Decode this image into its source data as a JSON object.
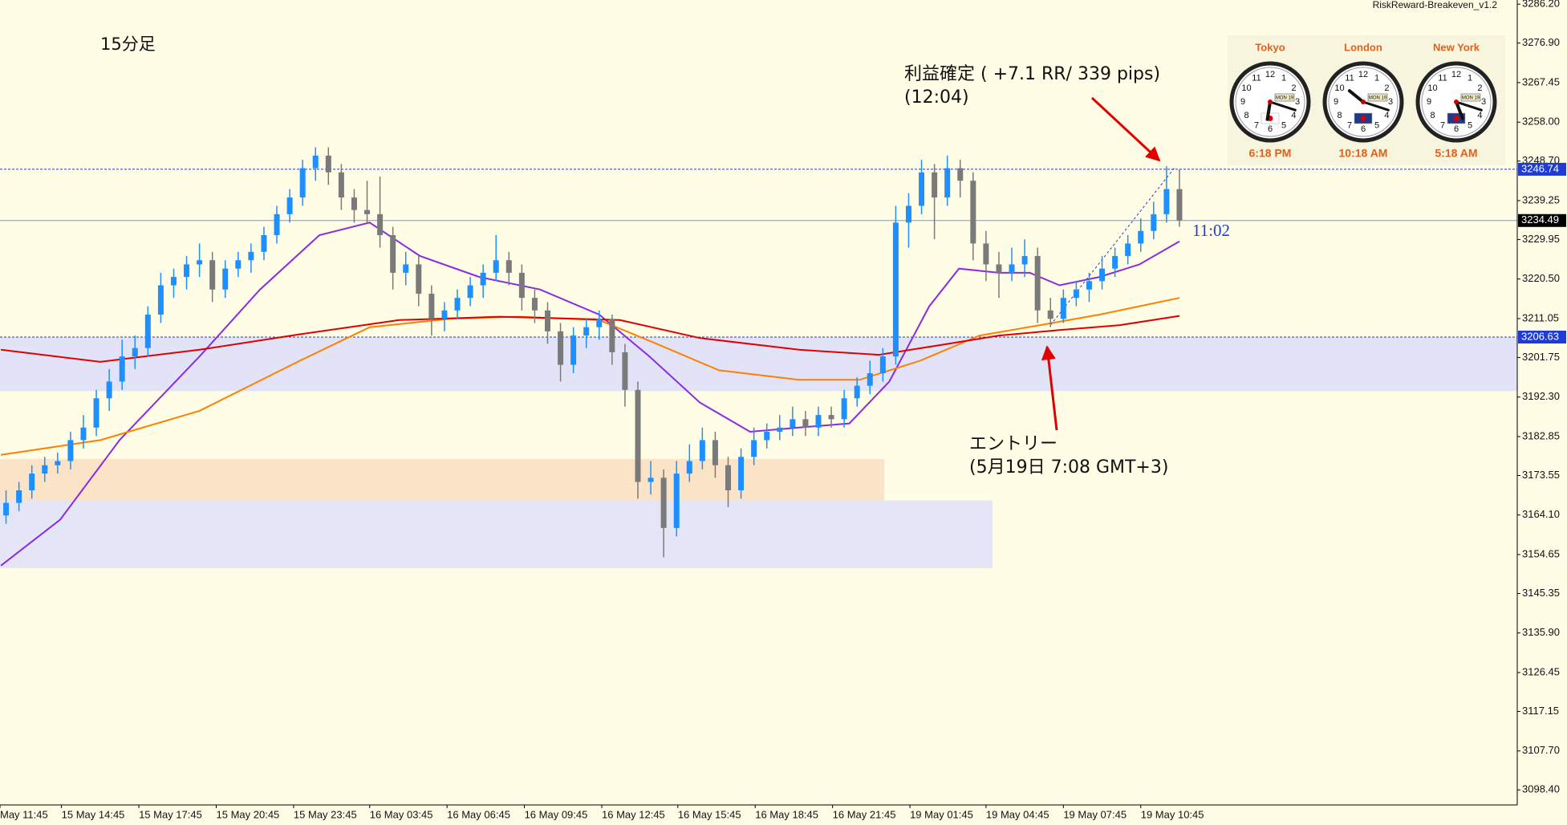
{
  "chart_data": {
    "type": "candlestick",
    "title": "15分足",
    "indicator_label": "RiskReward-Breakeven_v1.2",
    "annotations": {
      "take_profit": "利益確定 ( +7.1 RR/ 339 pips)",
      "take_profit_time": "(12:04)",
      "entry": "エントリー",
      "entry_time": "(5月19日 7:08 GMT+3)",
      "countdown": "11:02"
    },
    "xlim": [
      -0.47,
      117.2
    ],
    "ylim": [
      3094.8,
      3287.2
    ],
    "grid": false,
    "bull_color": "#1e8fff",
    "bear_color": "#7a7a7a",
    "background": "#fffde6",
    "ohlc": [
      [
        3164,
        3170,
        3162,
        3167
      ],
      [
        3167,
        3172,
        3165,
        3170
      ],
      [
        3170,
        3176,
        3168,
        3174
      ],
      [
        3174,
        3178,
        3172,
        3176
      ],
      [
        3176,
        3179,
        3174,
        3177
      ],
      [
        3177,
        3184,
        3175,
        3182
      ],
      [
        3182,
        3188,
        3180,
        3185
      ],
      [
        3185,
        3194,
        3183,
        3192
      ],
      [
        3192,
        3199,
        3189,
        3196
      ],
      [
        3196,
        3206,
        3194,
        3202
      ],
      [
        3202,
        3207,
        3199,
        3204
      ],
      [
        3204,
        3214,
        3202,
        3212
      ],
      [
        3212,
        3222,
        3210,
        3219
      ],
      [
        3219,
        3223,
        3216,
        3221
      ],
      [
        3221,
        3226,
        3218,
        3224
      ],
      [
        3224,
        3229,
        3221,
        3225
      ],
      [
        3225,
        3227,
        3215,
        3218
      ],
      [
        3218,
        3225,
        3216,
        3223
      ],
      [
        3223,
        3227,
        3221,
        3225
      ],
      [
        3225,
        3229,
        3222,
        3227
      ],
      [
        3227,
        3233,
        3225,
        3231
      ],
      [
        3231,
        3238,
        3229,
        3236
      ],
      [
        3236,
        3242,
        3234,
        3240
      ],
      [
        3240,
        3249,
        3238,
        3247
      ],
      [
        3247,
        3252,
        3244,
        3250
      ],
      [
        3250,
        3252,
        3243,
        3246
      ],
      [
        3246,
        3248,
        3237,
        3240
      ],
      [
        3240,
        3242,
        3234,
        3237
      ],
      [
        3237,
        3244,
        3234,
        3236
      ],
      [
        3236,
        3245,
        3228,
        3231
      ],
      [
        3231,
        3233,
        3218,
        3222
      ],
      [
        3222,
        3227,
        3219,
        3224
      ],
      [
        3224,
        3226,
        3214,
        3217
      ],
      [
        3217,
        3219,
        3207,
        3211
      ],
      [
        3211,
        3215,
        3208,
        3213
      ],
      [
        3213,
        3218,
        3211,
        3216
      ],
      [
        3216,
        3221,
        3214,
        3219
      ],
      [
        3219,
        3224,
        3216,
        3222
      ],
      [
        3222,
        3231,
        3220,
        3225
      ],
      [
        3225,
        3227,
        3219,
        3222
      ],
      [
        3222,
        3224,
        3213,
        3216
      ],
      [
        3216,
        3218,
        3210,
        3213
      ],
      [
        3213,
        3215,
        3205,
        3208
      ],
      [
        3208,
        3210,
        3196,
        3200
      ],
      [
        3200,
        3209,
        3198,
        3207
      ],
      [
        3207,
        3211,
        3204,
        3209
      ],
      [
        3209,
        3213,
        3206,
        3211
      ],
      [
        3211,
        3212,
        3200,
        3203
      ],
      [
        3203,
        3205,
        3190,
        3194
      ],
      [
        3194,
        3196,
        3168,
        3172
      ],
      [
        3172,
        3177,
        3169,
        3173
      ],
      [
        3173,
        3175,
        3154,
        3161
      ],
      [
        3161,
        3177,
        3159,
        3174
      ],
      [
        3174,
        3181,
        3172,
        3177
      ],
      [
        3177,
        3185,
        3175,
        3182
      ],
      [
        3182,
        3184,
        3173,
        3176
      ],
      [
        3176,
        3178,
        3166,
        3170
      ],
      [
        3170,
        3180,
        3168,
        3178
      ],
      [
        3178,
        3185,
        3176,
        3182
      ],
      [
        3182,
        3186,
        3180,
        3184
      ],
      [
        3184,
        3188,
        3182,
        3185
      ],
      [
        3185,
        3190,
        3183,
        3187
      ],
      [
        3187,
        3189,
        3183,
        3185
      ],
      [
        3185,
        3190,
        3183,
        3188
      ],
      [
        3188,
        3190,
        3185,
        3187
      ],
      [
        3187,
        3194,
        3185,
        3192
      ],
      [
        3192,
        3197,
        3190,
        3195
      ],
      [
        3195,
        3201,
        3193,
        3198
      ],
      [
        3198,
        3204,
        3196,
        3202
      ],
      [
        3202,
        3238,
        3200,
        3234
      ],
      [
        3234,
        3241,
        3228,
        3238
      ],
      [
        3238,
        3249,
        3236,
        3246
      ],
      [
        3246,
        3248,
        3230,
        3240
      ],
      [
        3240,
        3250,
        3238,
        3247
      ],
      [
        3247,
        3249,
        3240,
        3244
      ],
      [
        3244,
        3246,
        3225,
        3229
      ],
      [
        3229,
        3232,
        3220,
        3224
      ],
      [
        3224,
        3227,
        3216,
        3222
      ],
      [
        3222,
        3228,
        3220,
        3224
      ],
      [
        3224,
        3230,
        3221,
        3226
      ],
      [
        3226,
        3228,
        3210,
        3213
      ],
      [
        3213,
        3216,
        3209,
        3211
      ],
      [
        3211,
        3218,
        3210,
        3216
      ],
      [
        3216,
        3220,
        3214,
        3218
      ],
      [
        3218,
        3222,
        3215,
        3220
      ],
      [
        3220,
        3226,
        3218,
        3223
      ],
      [
        3223,
        3228,
        3221,
        3226
      ],
      [
        3226,
        3231,
        3224,
        3229
      ],
      [
        3229,
        3235,
        3227,
        3232
      ],
      [
        3232,
        3239,
        3230,
        3236
      ],
      [
        3236,
        3247.5,
        3234,
        3242
      ],
      [
        3242,
        3246.74,
        3233,
        3234.49
      ]
    ],
    "series": [
      {
        "color": "#8a2be2",
        "x": [
          -0.4,
          4.2,
          8.8,
          15,
          19.7,
          24.3,
          28.2,
          32.1,
          36.7,
          41.4,
          46,
          49.9,
          53.8,
          57.7,
          61.5,
          65.4,
          68.5,
          71.6,
          73.9,
          77,
          79.4,
          81.7,
          84.8,
          87.9,
          91
        ],
        "values": [
          3152,
          3163,
          3182,
          3202,
          3218,
          3231,
          3234,
          3226,
          3221,
          3218,
          3212,
          3202,
          3191,
          3184,
          3185,
          3186,
          3196,
          3214,
          3223,
          3222,
          3222,
          3219,
          3221,
          3224,
          3229.5
        ]
      },
      {
        "color": "#ff8000",
        "x": [
          -0.4,
          7.3,
          15,
          22.8,
          28.2,
          34.4,
          39.8,
          46,
          50.7,
          55.3,
          61.5,
          66.2,
          70.9,
          75.5,
          80.2,
          84.8,
          91
        ],
        "values": [
          3178.5,
          3182,
          3189,
          3201,
          3209,
          3211,
          3211.5,
          3210.7,
          3204.7,
          3198.7,
          3196.4,
          3196.4,
          3201,
          3207,
          3209.5,
          3212,
          3216
        ]
      },
      {
        "color": "#e00000",
        "x": [
          -0.4,
          7.3,
          15,
          22.8,
          30.5,
          38.3,
          47.6,
          53.8,
          61.5,
          67.7,
          72.4,
          77,
          81.7,
          86.4,
          91
        ],
        "values": [
          3203.6,
          3200.7,
          3203.6,
          3207.3,
          3210.7,
          3211.5,
          3210.7,
          3206.4,
          3203.6,
          3202.4,
          3204.7,
          3207,
          3208.3,
          3209.5,
          3211.7
        ]
      }
    ],
    "zones": [
      {
        "top": 3206.63,
        "bottom": 3193.7,
        "x_end": 117.2,
        "color": "#e3e3f7"
      },
      {
        "top": 3177.5,
        "bottom": 3167.6,
        "x_end": 68.1,
        "color": "#fbe3c7"
      },
      {
        "top": 3167.6,
        "bottom": 3151.4,
        "x_end": 76.5,
        "color": "#e4e6f8"
      }
    ],
    "trendline": {
      "x": [
        81,
        90.6
      ],
      "y": [
        3209.5,
        3247
      ],
      "color": "#1e3bd6"
    },
    "price_lines": [
      {
        "value": 3246.74,
        "color": "#1e3bd6",
        "style": "dashed"
      },
      {
        "value": 3234.49,
        "color": "#000000",
        "style": "solid"
      },
      {
        "value": 3206.63,
        "color": "#1e3bd6",
        "style": "dashed"
      }
    ],
    "yticks": [
      {
        "value": 3286.2,
        "label": "3286.20"
      },
      {
        "value": 3276.9,
        "label": "3276.90"
      },
      3267.45,
      {
        "value": 3258,
        "label": "3258.00"
      },
      {
        "value": 3248.7,
        "label": "3248.70"
      },
      3239.25,
      3229.95,
      {
        "value": 3220.5,
        "label": "3220.50"
      },
      3211.05,
      3201.75,
      {
        "value": 3192.3,
        "label": "3192.30"
      },
      3182.85,
      3173.55,
      {
        "value": 3164.1,
        "label": "3164.10"
      },
      3154.65,
      3145.35,
      {
        "value": 3135.9,
        "label": "3135.90"
      },
      3126.45,
      3117.15,
      {
        "value": 3107.7,
        "label": "3107.70"
      },
      {
        "value": 3098.4,
        "label": "3098.40"
      }
    ],
    "xticks": [
      {
        "value": -0.47,
        "label": "May 11:45"
      },
      {
        "value": 4.3,
        "label": "15 May 14:45"
      },
      {
        "value": 10.3,
        "label": "15 May 17:45"
      },
      {
        "value": 16.3,
        "label": "15 May 20:45"
      },
      {
        "value": 22.3,
        "label": "15 May 23:45"
      },
      {
        "value": 28.2,
        "label": "16 May 03:45"
      },
      {
        "value": 34.2,
        "label": "16 May 06:45"
      },
      {
        "value": 40.2,
        "label": "16 May 09:45"
      },
      {
        "value": 46.2,
        "label": "16 May 12:45"
      },
      {
        "value": 52.1,
        "label": "16 May 15:45"
      },
      {
        "value": 58.1,
        "label": "16 May 18:45"
      },
      {
        "value": 64.1,
        "label": "16 May 21:45"
      },
      {
        "value": 70.1,
        "label": "19 May 01:45"
      },
      {
        "value": 76.0,
        "label": "19 May 04:45"
      },
      {
        "value": 82.0,
        "label": "19 May 07:45"
      },
      {
        "value": 88.0,
        "label": "19 May 10:45"
      }
    ],
    "clock_dial": [
      "12",
      "1",
      "2",
      "3",
      "4",
      "5",
      "6",
      "7",
      "8",
      "9",
      "10",
      "11"
    ],
    "clock_date": "MON 19",
    "clocks": [
      {
        "city": "Tokyo",
        "time": "6:18 PM"
      },
      {
        "city": "London",
        "time": "10:18 AM"
      },
      {
        "city": "New York",
        "time": "5:18 AM"
      }
    ]
  }
}
